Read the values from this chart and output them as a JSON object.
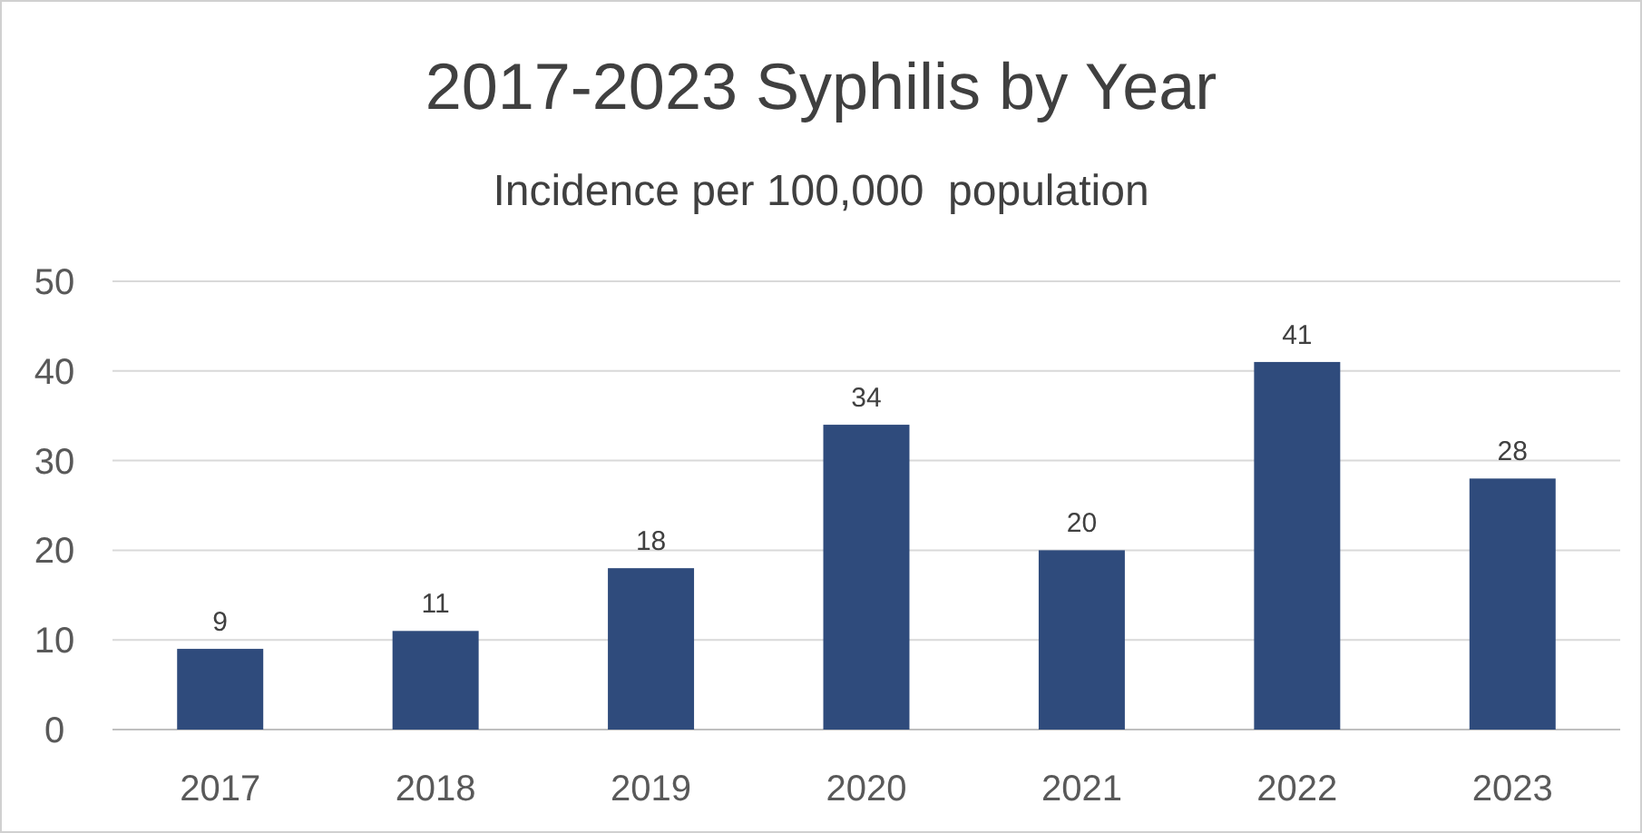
{
  "chart_data": {
    "type": "bar",
    "title": "2017-2023 Syphilis by Year",
    "subtitle": "Incidence per 100,000  population",
    "categories": [
      "2017",
      "2018",
      "2019",
      "2020",
      "2021",
      "2022",
      "2023"
    ],
    "values": [
      9,
      11,
      18,
      34,
      20,
      41,
      28
    ],
    "color": "#2f4b7c",
    "ylim": [
      0,
      50
    ],
    "yticks": [
      0,
      10,
      20,
      30,
      40,
      50
    ],
    "grid": "y",
    "data_labels": true
  }
}
